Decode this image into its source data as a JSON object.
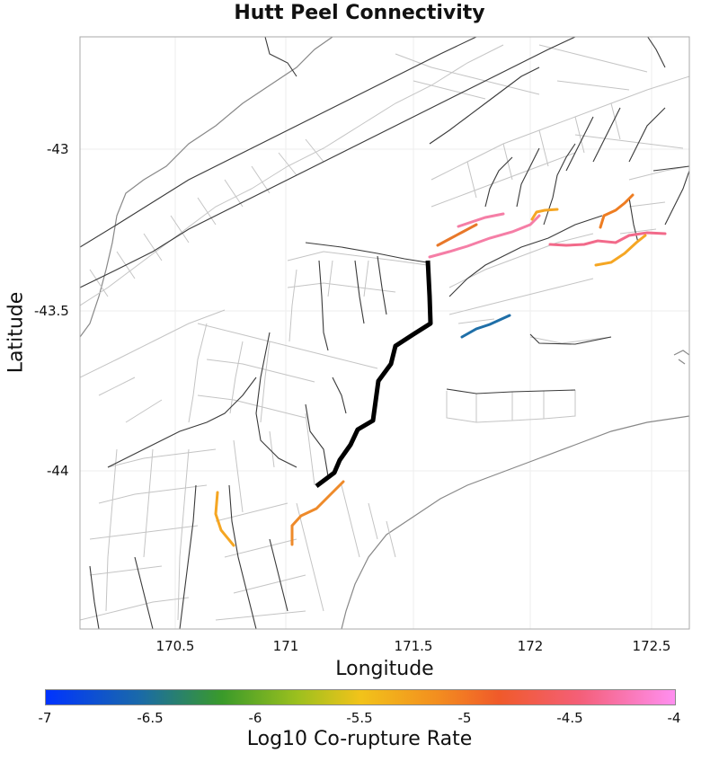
{
  "title": "Hutt Peel Connectivity",
  "x_axis": {
    "label": "Longitude",
    "ticks": [
      "170.5",
      "171",
      "171.5",
      "172",
      "172.5"
    ]
  },
  "y_axis": {
    "label": "Latitude",
    "ticks": [
      "-43",
      "-43.5",
      "-44"
    ]
  },
  "colorbar": {
    "label": "Log10 Co-rupture Rate",
    "ticks": [
      "-7",
      "-6.5",
      "-6",
      "-5.5",
      "-5",
      "-4.5",
      "-4"
    ]
  },
  "colors": {
    "selected_fault": "#000000",
    "high": "#f57ea6",
    "mid": "#f5a623",
    "orange": "#ee7d22",
    "low": "#1f6fa8"
  }
}
